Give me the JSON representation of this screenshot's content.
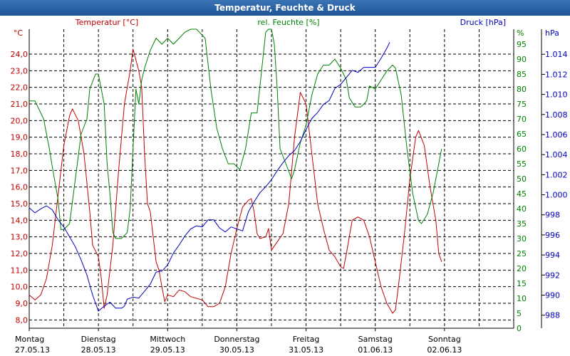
{
  "window": {
    "title": "Temperatur, Feuchte & Druck"
  },
  "colors": {
    "temperature": "#c00000",
    "humidity": "#008000",
    "pressure": "#0000c0",
    "grid": "#000000",
    "title_bar": "#2a60a3"
  },
  "chart_data": {
    "type": "line",
    "title": "Temperatur, Feuchte & Druck",
    "x": {
      "range_hours": [
        0,
        168
      ],
      "labels": [
        {
          "weekday": "Montag",
          "date": "27.05.13",
          "hour": 0
        },
        {
          "weekday": "Dienstag",
          "date": "28.05.13",
          "hour": 24
        },
        {
          "weekday": "Mittwoch",
          "date": "29.05.13",
          "hour": 48
        },
        {
          "weekday": "Donnerstag",
          "date": "30.05.13",
          "hour": 72
        },
        {
          "weekday": "Freitag",
          "date": "31.05.13",
          "hour": 96
        },
        {
          "weekday": "Samstag",
          "date": "01.06.13",
          "hour": 120
        },
        {
          "weekday": "Sonntag",
          "date": "02.06.13",
          "hour": 144
        }
      ]
    },
    "grid": true,
    "axes": {
      "temperature": {
        "label": "Temperatur [°C]",
        "unit": "°C",
        "range": [
          7.5,
          25.5
        ],
        "ticks": [
          "8,0",
          "9,0",
          "10,0",
          "11,0",
          "12,0",
          "13,0",
          "14,0",
          "15,0",
          "16,0",
          "17,0",
          "18,0",
          "19,0",
          "20,0",
          "21,0",
          "22,0",
          "23,0",
          "24,0"
        ]
      },
      "humidity": {
        "label": "rel. Feuchte [%]",
        "unit": "%",
        "range": [
          0,
          100
        ],
        "ticks": [
          "0",
          "5",
          "10",
          "15",
          "20",
          "25",
          "30",
          "35",
          "40",
          "45",
          "50",
          "55",
          "60",
          "65",
          "70",
          "75",
          "80",
          "85",
          "90",
          "95"
        ]
      },
      "pressure": {
        "label": "Druck [hPa]",
        "unit": "hPa",
        "range": [
          986.7,
          1016.5
        ],
        "ticks": [
          "988",
          "990",
          "992",
          "994",
          "996",
          "998",
          "1.000",
          "1.002",
          "1.004",
          "1.006",
          "1.008",
          "1.010",
          "1.012",
          "1.014"
        ]
      }
    },
    "series": [
      {
        "name": "Temperatur [°C]",
        "axis": "temperature",
        "points": [
          [
            0,
            9.5
          ],
          [
            2,
            9.2
          ],
          [
            4,
            9.5
          ],
          [
            6,
            10.5
          ],
          [
            8,
            12.5
          ],
          [
            10,
            15.5
          ],
          [
            12,
            18.5
          ],
          [
            14,
            20.3
          ],
          [
            15,
            20.7
          ],
          [
            17,
            20
          ],
          [
            19,
            18
          ],
          [
            21,
            14.5
          ],
          [
            22,
            12.5
          ],
          [
            24,
            11.8
          ],
          [
            25,
            10.5
          ],
          [
            26,
            8.7
          ],
          [
            27,
            9.5
          ],
          [
            29,
            12.5
          ],
          [
            31,
            17
          ],
          [
            33,
            21
          ],
          [
            35,
            23
          ],
          [
            36,
            24.3
          ],
          [
            38,
            23
          ],
          [
            39,
            22
          ],
          [
            40,
            18
          ],
          [
            41,
            15
          ],
          [
            42,
            14.5
          ],
          [
            43,
            13
          ],
          [
            44,
            11.5
          ],
          [
            45,
            11
          ],
          [
            46,
            10
          ],
          [
            47,
            9.1
          ],
          [
            48,
            9.5
          ],
          [
            50,
            9.4
          ],
          [
            52,
            9.8
          ],
          [
            54,
            9.7
          ],
          [
            56,
            9.4
          ],
          [
            58,
            9.3
          ],
          [
            60,
            9.2
          ],
          [
            62,
            8.8
          ],
          [
            64,
            8.8
          ],
          [
            66,
            9
          ],
          [
            68,
            10
          ],
          [
            70,
            12
          ],
          [
            72,
            13.5
          ],
          [
            74,
            14.8
          ],
          [
            76,
            15.2
          ],
          [
            77,
            15.3
          ],
          [
            78,
            14.5
          ],
          [
            79,
            13.2
          ],
          [
            80,
            12.9
          ],
          [
            82,
            13
          ],
          [
            83,
            13.5
          ],
          [
            84,
            12.2
          ],
          [
            86,
            12.7
          ],
          [
            88,
            13.2
          ],
          [
            90,
            15
          ],
          [
            92,
            19
          ],
          [
            94,
            21.7
          ],
          [
            96,
            21
          ],
          [
            98,
            18
          ],
          [
            100,
            15
          ],
          [
            102,
            13.5
          ],
          [
            104,
            12.2
          ],
          [
            106,
            11.8
          ],
          [
            108,
            11.2
          ],
          [
            109,
            11.1
          ],
          [
            110,
            12
          ],
          [
            112,
            14
          ],
          [
            114,
            14.2
          ],
          [
            116,
            14
          ],
          [
            118,
            13
          ],
          [
            120,
            11.5
          ],
          [
            122,
            10
          ],
          [
            124,
            9
          ],
          [
            126,
            8.4
          ],
          [
            127,
            8.6
          ],
          [
            128,
            10
          ],
          [
            130,
            13
          ],
          [
            132,
            16.5
          ],
          [
            134,
            19
          ],
          [
            135,
            19.4
          ],
          [
            137,
            18.5
          ],
          [
            139,
            16
          ],
          [
            141,
            14
          ],
          [
            142,
            12
          ],
          [
            143,
            11.5
          ]
        ]
      },
      {
        "name": "rel. Feuchte [%]",
        "axis": "humidity",
        "points": [
          [
            0,
            76
          ],
          [
            2,
            76
          ],
          [
            4,
            72
          ],
          [
            5,
            70
          ],
          [
            7,
            60
          ],
          [
            8,
            54
          ],
          [
            10,
            43
          ],
          [
            11,
            33
          ],
          [
            12,
            33
          ],
          [
            14,
            35
          ],
          [
            16,
            50
          ],
          [
            18,
            65
          ],
          [
            20,
            70
          ],
          [
            21,
            80
          ],
          [
            23,
            85
          ],
          [
            24,
            85
          ],
          [
            26,
            75
          ],
          [
            27,
            55
          ],
          [
            28,
            45
          ],
          [
            29,
            32
          ],
          [
            30,
            30
          ],
          [
            32,
            30
          ],
          [
            34,
            32
          ],
          [
            35,
            40
          ],
          [
            36,
            60
          ],
          [
            37,
            80
          ],
          [
            38,
            75
          ],
          [
            39,
            83
          ],
          [
            40,
            87
          ],
          [
            42,
            93
          ],
          [
            44,
            97
          ],
          [
            46,
            95
          ],
          [
            48,
            97
          ],
          [
            50,
            95
          ],
          [
            52,
            97
          ],
          [
            54,
            99
          ],
          [
            56,
            100
          ],
          [
            58,
            100
          ],
          [
            59,
            99
          ],
          [
            61,
            97
          ],
          [
            63,
            80
          ],
          [
            65,
            67
          ],
          [
            67,
            60
          ],
          [
            69,
            55
          ],
          [
            71,
            55
          ],
          [
            73,
            53
          ],
          [
            75,
            60
          ],
          [
            77,
            72
          ],
          [
            79,
            72
          ],
          [
            81,
            90
          ],
          [
            82,
            99
          ],
          [
            83,
            100
          ],
          [
            84,
            100
          ],
          [
            85,
            95
          ],
          [
            86,
            80
          ],
          [
            87,
            60
          ],
          [
            89,
            55
          ],
          [
            91,
            50
          ],
          [
            92,
            53
          ],
          [
            94,
            62
          ],
          [
            96,
            68
          ],
          [
            98,
            78
          ],
          [
            100,
            85
          ],
          [
            102,
            88
          ],
          [
            104,
            88
          ],
          [
            106,
            90
          ],
          [
            108,
            87
          ],
          [
            110,
            83
          ],
          [
            111,
            77
          ],
          [
            113,
            74
          ],
          [
            115,
            74
          ],
          [
            117,
            76
          ],
          [
            118,
            81
          ],
          [
            120,
            80
          ],
          [
            122,
            83
          ],
          [
            124,
            86
          ],
          [
            126,
            88
          ],
          [
            127,
            87
          ],
          [
            129,
            78
          ],
          [
            131,
            60
          ],
          [
            133,
            45
          ],
          [
            135,
            36
          ],
          [
            136,
            35
          ],
          [
            138,
            38
          ],
          [
            140,
            45
          ],
          [
            142,
            55
          ],
          [
            143,
            60
          ]
        ]
      },
      {
        "name": "Druck [hPa]",
        "axis": "pressure",
        "points": [
          [
            0,
            998.7
          ],
          [
            2,
            998.2
          ],
          [
            4,
            998.6
          ],
          [
            6,
            998.9
          ],
          [
            8,
            998.5
          ],
          [
            10,
            997.5
          ],
          [
            12,
            996.8
          ],
          [
            14,
            995.8
          ],
          [
            16,
            994.8
          ],
          [
            18,
            993.5
          ],
          [
            20,
            992
          ],
          [
            22,
            990
          ],
          [
            24,
            988.4
          ],
          [
            26,
            988.9
          ],
          [
            28,
            989.3
          ],
          [
            30,
            988.7
          ],
          [
            32,
            988.7
          ],
          [
            33,
            988.9
          ],
          [
            34,
            989.6
          ],
          [
            36,
            989.8
          ],
          [
            38,
            989.7
          ],
          [
            40,
            990.4
          ],
          [
            42,
            991.1
          ],
          [
            44,
            992.3
          ],
          [
            46,
            992.4
          ],
          [
            48,
            993
          ],
          [
            50,
            994.2
          ],
          [
            52,
            995
          ],
          [
            54,
            995.9
          ],
          [
            56,
            996.6
          ],
          [
            58,
            996.9
          ],
          [
            60,
            996.8
          ],
          [
            62,
            997.5
          ],
          [
            64,
            997.5
          ],
          [
            66,
            996.7
          ],
          [
            68,
            996.3
          ],
          [
            70,
            996.8
          ],
          [
            72,
            996.6
          ],
          [
            74,
            996.4
          ],
          [
            76,
            998.3
          ],
          [
            78,
            999.3
          ],
          [
            80,
            1000.2
          ],
          [
            82,
            1000.8
          ],
          [
            84,
            1001.5
          ],
          [
            86,
            1002.4
          ],
          [
            88,
            1003.2
          ],
          [
            90,
            1003.9
          ],
          [
            92,
            1004.4
          ],
          [
            94,
            1005.3
          ],
          [
            96,
            1006.5
          ],
          [
            98,
            1007.6
          ],
          [
            100,
            1008.2
          ],
          [
            102,
            1009
          ],
          [
            104,
            1009.4
          ],
          [
            106,
            1010.6
          ],
          [
            108,
            1011
          ],
          [
            110,
            1011.7
          ],
          [
            112,
            1012.4
          ],
          [
            114,
            1012.2
          ],
          [
            116,
            1012.7
          ],
          [
            118,
            1012.7
          ],
          [
            120,
            1012.7
          ],
          [
            122,
            1013.6
          ],
          [
            124,
            1014.6
          ],
          [
            125,
            1015.2
          ]
        ]
      }
    ]
  }
}
